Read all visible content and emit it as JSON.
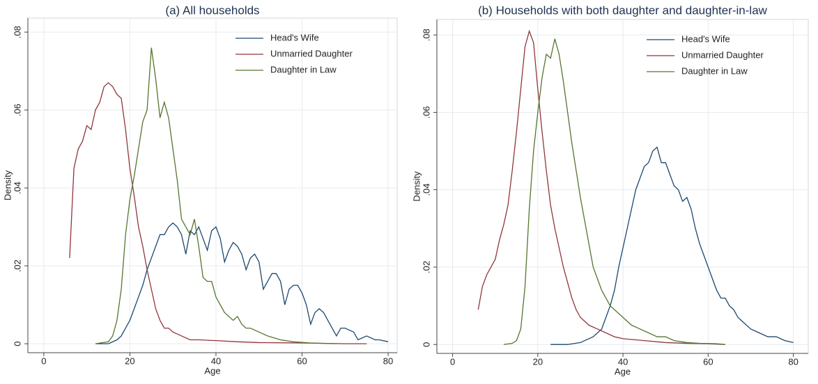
{
  "chart_data": [
    {
      "type": "line",
      "title": "(a) All households",
      "xlabel": "Age",
      "ylabel": "Density",
      "xlim": [
        -3.7,
        82.1
      ],
      "ylim": [
        -0.0023,
        0.0836
      ],
      "xticks": [
        0,
        20,
        40,
        60,
        80
      ],
      "yticks": [
        0,
        {
          "value": 0.02,
          "label": ".02"
        },
        {
          "value": 0.04,
          "label": ".04"
        },
        {
          "value": 0.06,
          "label": ".06"
        },
        {
          "value": 0.08,
          "label": ".08"
        }
      ],
      "grid": true,
      "legend": "top-right",
      "series": [
        {
          "name": "Head's Wife",
          "color": "#1a476f",
          "x": [
            12,
            15,
            17,
            18,
            19,
            20,
            21,
            22,
            23,
            24,
            25,
            26,
            27,
            28,
            29,
            30,
            31,
            32,
            33,
            34,
            35,
            36,
            37,
            38,
            39,
            40,
            41,
            42,
            43,
            44,
            45,
            46,
            47,
            48,
            49,
            50,
            51,
            52,
            53,
            54,
            55,
            56,
            57,
            58,
            59,
            60,
            61,
            62,
            63,
            64,
            65,
            66,
            67,
            68,
            69,
            70,
            72,
            73,
            75,
            77,
            78,
            80
          ],
          "values": [
            0,
            0,
            0.001,
            0.002,
            0.004,
            0.006,
            0.009,
            0.012,
            0.015,
            0.019,
            0.022,
            0.025,
            0.028,
            0.028,
            0.03,
            0.031,
            0.03,
            0.028,
            0.023,
            0.029,
            0.028,
            0.03,
            0.027,
            0.024,
            0.029,
            0.03,
            0.027,
            0.021,
            0.024,
            0.026,
            0.025,
            0.023,
            0.019,
            0.022,
            0.023,
            0.021,
            0.014,
            0.016,
            0.018,
            0.018,
            0.016,
            0.01,
            0.014,
            0.015,
            0.015,
            0.013,
            0.01,
            0.005,
            0.008,
            0.009,
            0.008,
            0.006,
            0.004,
            0.002,
            0.004,
            0.004,
            0.003,
            0.001,
            0.002,
            0.001,
            0.001,
            0.0005
          ]
        },
        {
          "name": "Unmarried Daughter",
          "color": "#90353b",
          "x": [
            6,
            7,
            8,
            9,
            10,
            11,
            12,
            13,
            14,
            15,
            16,
            17,
            18,
            19,
            20,
            21,
            22,
            23,
            24,
            25,
            26,
            27,
            28,
            29,
            30,
            32,
            34,
            36,
            40,
            45,
            50,
            60,
            70,
            75
          ],
          "values": [
            0.022,
            0.045,
            0.05,
            0.052,
            0.056,
            0.055,
            0.06,
            0.062,
            0.066,
            0.067,
            0.066,
            0.064,
            0.063,
            0.055,
            0.045,
            0.038,
            0.03,
            0.025,
            0.019,
            0.014,
            0.009,
            0.006,
            0.004,
            0.004,
            0.003,
            0.002,
            0.001,
            0.001,
            0.0008,
            0.0005,
            0.0003,
            0.0002,
            0,
            0
          ]
        },
        {
          "name": "Daughter in Law",
          "color": "#55752f",
          "x": [
            12,
            15,
            16,
            17,
            18,
            19,
            20,
            21,
            22,
            23,
            24,
            25,
            26,
            27,
            28,
            29,
            30,
            31,
            32,
            33,
            34,
            35,
            36,
            37,
            38,
            39,
            40,
            41,
            42,
            43,
            44,
            45,
            46,
            47,
            48,
            50,
            52,
            55,
            58,
            62,
            68
          ],
          "values": [
            0,
            0.0005,
            0.002,
            0.006,
            0.014,
            0.028,
            0.037,
            0.043,
            0.05,
            0.057,
            0.06,
            0.076,
            0.068,
            0.058,
            0.062,
            0.058,
            0.05,
            0.042,
            0.032,
            0.03,
            0.028,
            0.032,
            0.025,
            0.017,
            0.016,
            0.016,
            0.012,
            0.01,
            0.008,
            0.007,
            0.006,
            0.007,
            0.005,
            0.004,
            0.004,
            0.003,
            0.002,
            0.001,
            0.0005,
            0.0002,
            0
          ]
        }
      ]
    },
    {
      "type": "line",
      "title": "(b) Households with both daughter and daughter-in-law",
      "xlabel": "Age",
      "ylabel": "Density",
      "xlim": [
        -3.7,
        83.5
      ],
      "ylim": [
        -0.0023,
        0.084
      ],
      "xticks": [
        0,
        20,
        40,
        60,
        80
      ],
      "yticks": [
        0,
        {
          "value": 0.02,
          "label": ".02"
        },
        {
          "value": 0.04,
          "label": ".04"
        },
        {
          "value": 0.06,
          "label": ".06"
        },
        {
          "value": 0.08,
          "label": ".08"
        }
      ],
      "grid": true,
      "legend": "top-right",
      "series": [
        {
          "name": "Head's Wife",
          "color": "#1a476f",
          "x": [
            23,
            27,
            30,
            33,
            35,
            36,
            37,
            38,
            39,
            40,
            41,
            42,
            43,
            44,
            45,
            46,
            47,
            48,
            49,
            50,
            51,
            52,
            53,
            54,
            55,
            56,
            57,
            58,
            59,
            60,
            61,
            62,
            63,
            64,
            65,
            66,
            67,
            68,
            70,
            72,
            74,
            76,
            78,
            80
          ],
          "values": [
            0,
            0,
            0.0005,
            0.002,
            0.004,
            0.007,
            0.01,
            0.014,
            0.02,
            0.025,
            0.03,
            0.035,
            0.04,
            0.043,
            0.046,
            0.047,
            0.05,
            0.051,
            0.047,
            0.047,
            0.044,
            0.041,
            0.04,
            0.037,
            0.038,
            0.035,
            0.03,
            0.026,
            0.023,
            0.02,
            0.017,
            0.014,
            0.012,
            0.012,
            0.01,
            0.009,
            0.007,
            0.006,
            0.004,
            0.003,
            0.002,
            0.002,
            0.001,
            0.0005
          ]
        },
        {
          "name": "Unmarried Daughter",
          "color": "#90353b",
          "x": [
            6,
            7,
            8,
            9,
            10,
            11,
            12,
            13,
            14,
            15,
            16,
            17,
            18,
            19,
            20,
            21,
            22,
            23,
            24,
            25,
            26,
            27,
            28,
            29,
            30,
            32,
            34,
            36,
            38,
            40,
            45,
            50,
            55,
            60,
            64
          ],
          "values": [
            0.009,
            0.015,
            0.018,
            0.02,
            0.022,
            0.027,
            0.031,
            0.036,
            0.045,
            0.055,
            0.066,
            0.077,
            0.081,
            0.078,
            0.066,
            0.055,
            0.045,
            0.036,
            0.03,
            0.025,
            0.02,
            0.016,
            0.012,
            0.009,
            0.007,
            0.005,
            0.004,
            0.003,
            0.002,
            0.0015,
            0.001,
            0.0005,
            0.0003,
            0.0002,
            0
          ]
        },
        {
          "name": "Daughter in Law",
          "color": "#55752f",
          "x": [
            12,
            14,
            15,
            16,
            17,
            18,
            19,
            20,
            21,
            22,
            23,
            24,
            25,
            26,
            27,
            28,
            29,
            30,
            31,
            32,
            33,
            34,
            35,
            36,
            37,
            38,
            39,
            40,
            42,
            44,
            46,
            48,
            50,
            52,
            55,
            58,
            62,
            64
          ],
          "values": [
            0,
            0.0003,
            0.001,
            0.004,
            0.015,
            0.035,
            0.05,
            0.06,
            0.069,
            0.075,
            0.074,
            0.079,
            0.075,
            0.068,
            0.06,
            0.052,
            0.045,
            0.038,
            0.032,
            0.026,
            0.02,
            0.017,
            0.014,
            0.012,
            0.01,
            0.009,
            0.008,
            0.007,
            0.005,
            0.004,
            0.003,
            0.002,
            0.002,
            0.001,
            0.0005,
            0.0003,
            0.0002,
            0
          ]
        }
      ]
    }
  ]
}
